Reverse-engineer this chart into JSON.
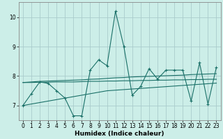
{
  "xlabel": "Humidex (Indice chaleur)",
  "bg_color": "#cceee8",
  "grid_color": "#aacccc",
  "line_color": "#1a7068",
  "xlim": [
    -0.5,
    23.5
  ],
  "ylim": [
    6.5,
    10.5
  ],
  "yticks": [
    7,
    8,
    9,
    10
  ],
  "xticks": [
    0,
    1,
    2,
    3,
    4,
    5,
    6,
    7,
    8,
    9,
    10,
    11,
    12,
    13,
    14,
    15,
    16,
    17,
    18,
    19,
    20,
    21,
    22,
    23
  ],
  "s1": [
    7.0,
    7.4,
    7.8,
    7.75,
    7.5,
    7.25,
    6.65,
    6.65,
    8.2,
    8.55,
    8.35,
    10.2,
    9.0,
    7.35,
    7.65,
    8.25,
    7.9,
    8.2,
    8.2,
    8.2,
    7.15,
    8.45,
    7.05,
    8.3
  ],
  "s2": [
    7.78,
    7.8,
    7.82,
    7.83,
    7.84,
    7.85,
    7.86,
    7.87,
    7.89,
    7.9,
    7.92,
    7.94,
    7.95,
    7.97,
    7.98,
    7.99,
    8.0,
    8.01,
    8.02,
    8.03,
    8.05,
    8.06,
    8.07,
    8.08
  ],
  "s3": [
    7.78,
    7.78,
    7.79,
    7.79,
    7.8,
    7.8,
    7.8,
    7.81,
    7.82,
    7.82,
    7.83,
    7.83,
    7.84,
    7.84,
    7.85,
    7.85,
    7.86,
    7.86,
    7.87,
    7.87,
    7.88,
    7.88,
    7.89,
    7.89
  ],
  "s4": [
    7.0,
    7.05,
    7.1,
    7.15,
    7.2,
    7.25,
    7.3,
    7.35,
    7.4,
    7.45,
    7.5,
    7.52,
    7.54,
    7.56,
    7.58,
    7.6,
    7.62,
    7.64,
    7.66,
    7.68,
    7.7,
    7.72,
    7.74,
    7.76
  ],
  "xlabel_fontsize": 6.5,
  "tick_fontsize": 5.5
}
